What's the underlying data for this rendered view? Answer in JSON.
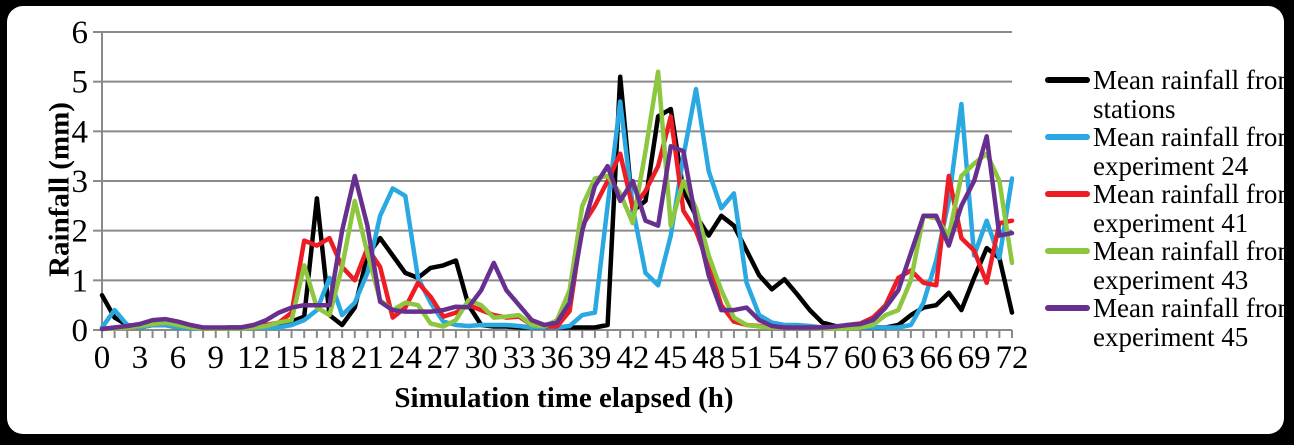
{
  "figure": {
    "background": "#000000",
    "card_background": "#ffffff",
    "axis_color": "#8a8a8a",
    "text_color": "#000000"
  },
  "chart_data": {
    "type": "line",
    "title": "",
    "xlabel": "Simulation time elapsed (h)",
    "ylabel": "Rainfall (mm)",
    "xlim": [
      0,
      72
    ],
    "ylim": [
      0,
      6
    ],
    "xticks": [
      0,
      3,
      6,
      9,
      12,
      15,
      18,
      21,
      24,
      27,
      30,
      33,
      36,
      39,
      42,
      45,
      48,
      51,
      54,
      57,
      60,
      63,
      66,
      69,
      72
    ],
    "yticks": [
      0,
      1,
      2,
      3,
      4,
      5,
      6
    ],
    "grid": "horizontal",
    "legend_position": "right",
    "x": [
      0,
      1,
      2,
      3,
      4,
      5,
      6,
      7,
      8,
      9,
      10,
      11,
      12,
      13,
      14,
      15,
      16,
      17,
      18,
      19,
      20,
      21,
      22,
      23,
      24,
      25,
      26,
      27,
      28,
      29,
      30,
      31,
      32,
      33,
      34,
      35,
      36,
      37,
      38,
      39,
      40,
      41,
      42,
      43,
      44,
      45,
      46,
      47,
      48,
      49,
      50,
      51,
      52,
      53,
      54,
      55,
      56,
      57,
      58,
      59,
      60,
      61,
      62,
      63,
      64,
      65,
      66,
      67,
      68,
      69,
      70,
      71,
      72
    ],
    "series": [
      {
        "name": "Mean rainfall from stations",
        "legend_line1": "Mean rainfall from",
        "legend_line2": "stations",
        "color": "#000000",
        "values": [
          0.7,
          0.25,
          0.1,
          0.05,
          0.1,
          0.1,
          0.05,
          0.05,
          0.03,
          0.03,
          0.05,
          0.05,
          0.05,
          0.1,
          0.13,
          0.17,
          0.27,
          2.65,
          0.3,
          0.1,
          0.45,
          1.5,
          1.85,
          1.5,
          1.15,
          1.05,
          1.25,
          1.3,
          1.4,
          0.5,
          0.1,
          0.07,
          0.07,
          0.05,
          0.05,
          0.05,
          0.05,
          0.05,
          0.05,
          0.05,
          0.1,
          5.1,
          2.4,
          2.6,
          4.3,
          4.45,
          2.8,
          2.3,
          1.9,
          2.3,
          2.1,
          1.6,
          1.1,
          0.82,
          1.02,
          0.72,
          0.4,
          0.15,
          0.08,
          0.05,
          0.05,
          0.05,
          0.05,
          0.1,
          0.3,
          0.45,
          0.5,
          0.75,
          0.4,
          1.05,
          1.65,
          1.45,
          0.35
        ]
      },
      {
        "name": "Mean rainfall from experiment 24",
        "legend_line1": "Mean rainfall from",
        "legend_line2": "experiment 24",
        "color": "#29A8E1",
        "values": [
          0.05,
          0.4,
          0.1,
          0.05,
          0.1,
          0.1,
          0.05,
          0.03,
          0.03,
          0.03,
          0.03,
          0.03,
          0.05,
          0.05,
          0.05,
          0.1,
          0.2,
          0.4,
          1.05,
          0.3,
          0.55,
          1.15,
          2.3,
          2.85,
          2.7,
          1.05,
          0.55,
          0.17,
          0.1,
          0.08,
          0.1,
          0.1,
          0.1,
          0.08,
          0.05,
          0.05,
          0.05,
          0.08,
          0.3,
          0.35,
          2.5,
          4.6,
          2.45,
          1.15,
          0.9,
          1.9,
          3.5,
          4.85,
          3.2,
          2.45,
          2.75,
          0.95,
          0.3,
          0.15,
          0.1,
          0.1,
          0.08,
          0.05,
          0.05,
          0.05,
          0.05,
          0.05,
          0.05,
          0.05,
          0.1,
          0.55,
          1.4,
          2.6,
          4.55,
          1.5,
          2.2,
          1.45,
          3.05
        ]
      },
      {
        "name": "Mean rainfall from experiment 41",
        "legend_line1": "Mean rainfall from",
        "legend_line2": "experiment 41",
        "color": "#EE1C25",
        "values": [
          0.02,
          0.05,
          0.05,
          0.08,
          0.13,
          0.15,
          0.1,
          0.05,
          0.03,
          0.03,
          0.03,
          0.05,
          0.1,
          0.1,
          0.15,
          0.35,
          1.8,
          1.7,
          1.85,
          1.27,
          1.0,
          1.65,
          1.27,
          0.25,
          0.45,
          0.95,
          0.67,
          0.27,
          0.35,
          0.5,
          0.4,
          0.3,
          0.25,
          0.27,
          0.1,
          0.07,
          0.07,
          0.38,
          2.1,
          2.5,
          3.0,
          3.55,
          2.45,
          2.8,
          3.3,
          4.3,
          2.4,
          2.0,
          1.3,
          0.5,
          0.17,
          0.1,
          0.08,
          0.05,
          0.05,
          0.05,
          0.05,
          0.05,
          0.05,
          0.1,
          0.13,
          0.25,
          0.5,
          1.05,
          1.2,
          0.95,
          0.9,
          3.1,
          1.85,
          1.6,
          0.95,
          2.15,
          2.2
        ]
      },
      {
        "name": "Mean rainfall from experiment 43",
        "legend_line1": "Mean rainfall from",
        "legend_line2": "experiment 43",
        "color": "#8DC63F",
        "values": [
          0.02,
          0.03,
          0.05,
          0.08,
          0.12,
          0.15,
          0.1,
          0.05,
          0.03,
          0.03,
          0.03,
          0.03,
          0.05,
          0.08,
          0.15,
          0.2,
          1.3,
          0.45,
          0.3,
          1.27,
          2.6,
          1.55,
          0.6,
          0.4,
          0.55,
          0.5,
          0.13,
          0.07,
          0.2,
          0.6,
          0.5,
          0.25,
          0.27,
          0.3,
          0.1,
          0.07,
          0.2,
          0.8,
          2.5,
          3.05,
          3.1,
          2.75,
          2.15,
          3.6,
          5.2,
          2.1,
          3.0,
          2.45,
          1.5,
          0.8,
          0.25,
          0.1,
          0.07,
          0.05,
          0.05,
          0.05,
          0.05,
          0.03,
          0.03,
          0.03,
          0.05,
          0.1,
          0.3,
          0.4,
          1.0,
          2.3,
          2.25,
          1.9,
          3.1,
          3.35,
          3.55,
          3.0,
          1.35
        ]
      },
      {
        "name": "Mean rainfall from experiment 45",
        "legend_line1": "Mean rainfall from",
        "legend_line2": "experiment 45",
        "color": "#67308F",
        "values": [
          0.02,
          0.05,
          0.08,
          0.12,
          0.2,
          0.22,
          0.17,
          0.1,
          0.05,
          0.05,
          0.05,
          0.05,
          0.1,
          0.2,
          0.35,
          0.45,
          0.5,
          0.5,
          0.5,
          2.0,
          3.1,
          2.1,
          0.57,
          0.4,
          0.37,
          0.37,
          0.37,
          0.4,
          0.47,
          0.46,
          0.8,
          1.35,
          0.8,
          0.5,
          0.2,
          0.1,
          0.15,
          0.55,
          2.0,
          2.9,
          3.3,
          2.6,
          3.0,
          2.2,
          2.1,
          3.7,
          3.6,
          2.2,
          1.1,
          0.4,
          0.4,
          0.45,
          0.2,
          0.08,
          0.05,
          0.05,
          0.05,
          0.05,
          0.07,
          0.1,
          0.12,
          0.2,
          0.45,
          0.8,
          1.55,
          2.3,
          2.3,
          1.7,
          2.5,
          3.0,
          3.9,
          1.9,
          1.95
        ]
      }
    ]
  }
}
